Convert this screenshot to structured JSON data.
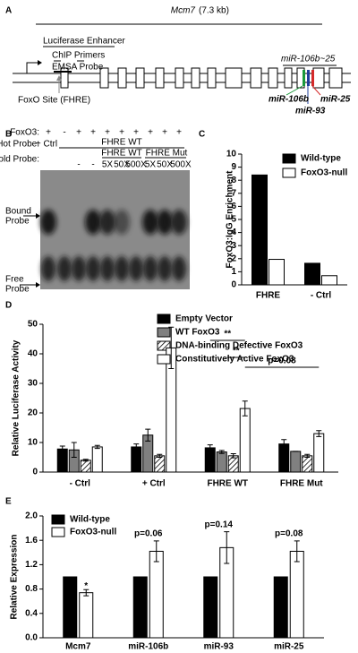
{
  "figure": {
    "a": {
      "label": "A",
      "gene": "Mcm7",
      "length": "(7.3 kb)",
      "luciferase": "Luciferase Enhancer",
      "chip": "ChIP Primers",
      "emsa": "EMSA Probe",
      "foxo_site": "FoxO Site (FHRE)",
      "cluster": "miR-106b~25",
      "mir106b": "miR-106b",
      "mir93": "miR-93",
      "mir25": "miR-25"
    },
    "b": {
      "label": "B",
      "foxo3_row": "FoxO3:",
      "foxo3": [
        "+",
        "-",
        "+",
        "+",
        "+",
        "+",
        "+",
        "+",
        "+",
        "+"
      ],
      "hot_row": "Hot Probe:",
      "hot": [
        "+ Ctrl",
        "FHRE WT"
      ],
      "cold_row": "Cold Probe:",
      "cold": [
        "-",
        "-"
      ],
      "cold_groups": [
        "FHRE WT",
        "FHRE Mut"
      ],
      "cold_doses": [
        "5X",
        "50X",
        "500X",
        "5X",
        "50X",
        "500X"
      ],
      "bound": [
        "Bound",
        "Probe"
      ],
      "free": [
        "Free",
        "Probe"
      ]
    }
  },
  "chart_data": [
    {
      "type": "bar",
      "panel": "C",
      "y_label": "FoxO3:IgG Enrichment",
      "categories": [
        "FHRE",
        "- Ctrl"
      ],
      "series": [
        {
          "name": "Wild-type",
          "color": "#000000",
          "values": [
            8.4,
            1.65
          ]
        },
        {
          "name": "FoxO3-null",
          "color": "#ffffff",
          "values": [
            1.95,
            0.7
          ]
        }
      ],
      "ylim": [
        0,
        10
      ],
      "yticks": [
        0,
        1,
        2,
        3,
        4,
        5,
        6,
        7,
        8,
        9,
        10
      ]
    },
    {
      "type": "bar",
      "panel": "D",
      "y_label": "Relative Luciferase Activity",
      "categories": [
        "- Ctrl",
        "+ Ctrl",
        "FHRE WT",
        "FHRE Mut"
      ],
      "series": [
        {
          "name": "Empty Vector",
          "color": "#000000",
          "values": [
            7.8,
            8.5,
            8.2,
            9.5
          ],
          "errors": [
            1,
            1,
            1,
            1.5
          ]
        },
        {
          "name": "WT FoxO3",
          "color": "#808080",
          "values": [
            7.5,
            12.5,
            6.8,
            7
          ],
          "errors": [
            2.5,
            2,
            0.5,
            0
          ]
        },
        {
          "name": "DNA-binding Defective FoxO3",
          "color": "#ffffff",
          "hatch": true,
          "values": [
            4,
            5.5,
            5.5,
            5.5
          ],
          "errors": [
            0.3,
            0.5,
            0.7,
            0.5
          ]
        },
        {
          "name": "Constitutively Active FoxO3",
          "color": "#ffffff",
          "values": [
            8.5,
            42,
            21.5,
            13
          ],
          "errors": [
            0.5,
            7,
            2.5,
            1
          ]
        }
      ],
      "annotations": [
        "**",
        "**",
        "p=0.08"
      ],
      "ylim": [
        0,
        50
      ],
      "yticks": [
        0,
        10,
        20,
        30,
        40,
        50
      ]
    },
    {
      "type": "bar",
      "panel": "E",
      "y_label": "Relative Expression",
      "categories": [
        "Mcm7",
        "miR-106b",
        "miR-93",
        "miR-25"
      ],
      "category_colors": [
        "#000000",
        "#1a9a3a",
        "#1f3f9a",
        "#d42a2a"
      ],
      "series": [
        {
          "name": "Wild-type",
          "color": "#000000",
          "values": [
            1,
            1,
            1,
            1
          ]
        },
        {
          "name": "FoxO3-null",
          "color": "#ffffff",
          "values": [
            0.74,
            1.42,
            1.48,
            1.42
          ],
          "errors": [
            0.05,
            0.17,
            0.26,
            0.17
          ]
        }
      ],
      "annotations": [
        "*",
        "p=0.06",
        "p=0.14",
        "p=0.08"
      ],
      "ylim": [
        0,
        2
      ],
      "yticks": [
        {
          "value": 0,
          "label": "0.0"
        },
        0.4,
        0.8,
        1.2,
        1.6,
        {
          "value": 2,
          "label": "2.0"
        }
      ]
    }
  ]
}
